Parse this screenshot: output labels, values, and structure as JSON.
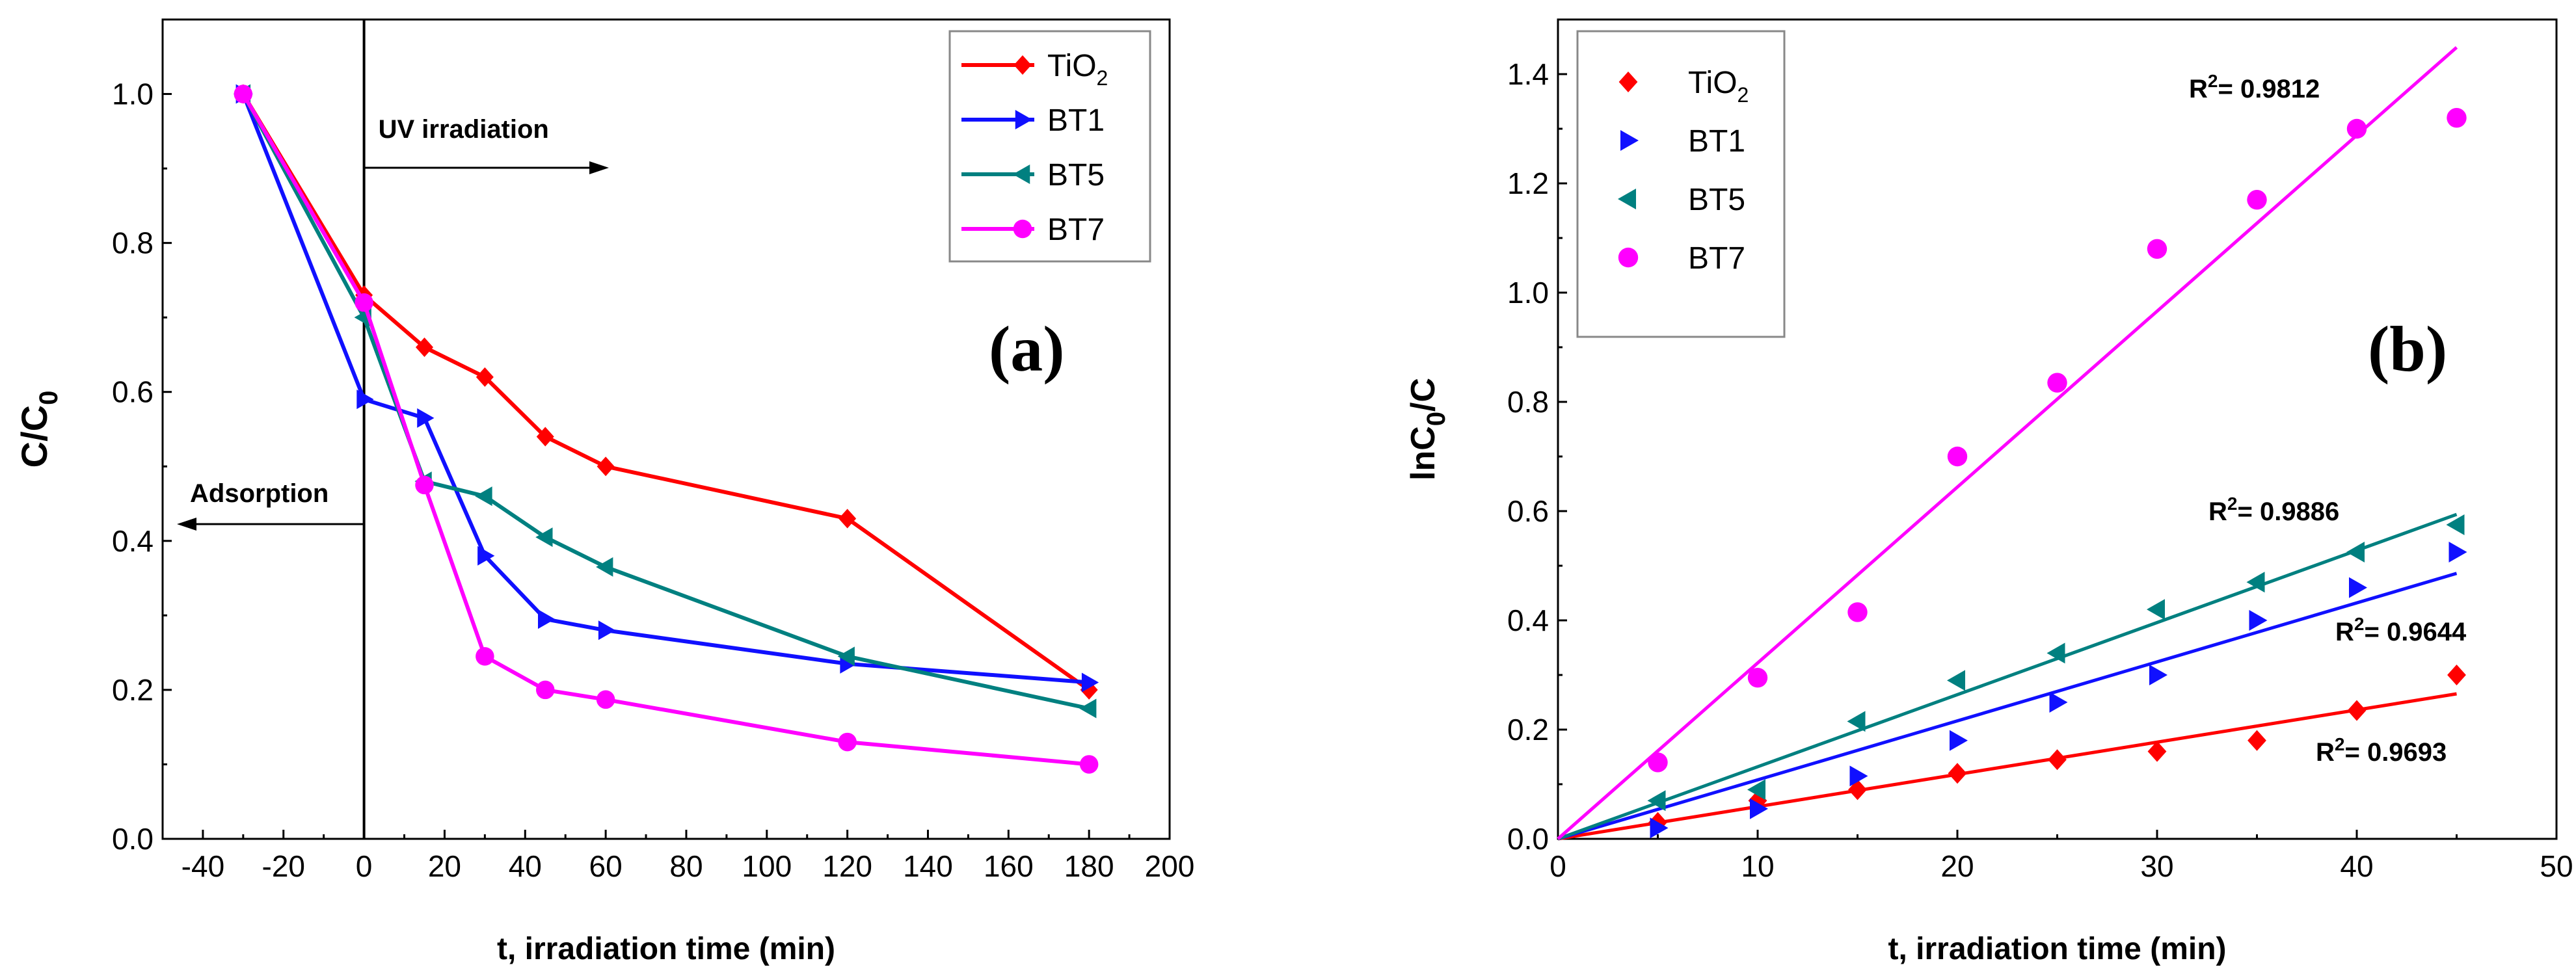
{
  "colors": {
    "TiO2": "#ff0000",
    "BT1": "#1010ff",
    "BT5": "#008080",
    "BT7": "#ff00ff",
    "axis": "#000000"
  },
  "chart_data": [
    {
      "type": "line",
      "panel_label": "(a)",
      "xlabel": "t, irradiation time (min)",
      "ylabel": "C/C0",
      "ylabel_main": "C/C",
      "ylabel_sub": "0",
      "xlim": [
        -50,
        200
      ],
      "ylim": [
        0,
        1.1
      ],
      "xticks": [
        -40,
        -20,
        0,
        20,
        40,
        60,
        80,
        100,
        120,
        140,
        160,
        180,
        200
      ],
      "yticks": [
        0.0,
        0.2,
        0.4,
        0.6,
        0.8,
        1.0
      ],
      "legend_position": "top-right",
      "annotations": {
        "uv": "UV irradiation",
        "adsorption": "Adsorption"
      },
      "series": [
        {
          "name": "TiO2",
          "label_main": "TiO",
          "label_sub": "2",
          "marker": "diamond",
          "x": [
            -30,
            0,
            15,
            30,
            45,
            60,
            120,
            180
          ],
          "y": [
            1.0,
            0.73,
            0.66,
            0.62,
            0.54,
            0.5,
            0.43,
            0.2
          ]
        },
        {
          "name": "BT1",
          "label_main": "BT1",
          "label_sub": "",
          "marker": "triangle-right",
          "x": [
            -30,
            0,
            15,
            30,
            45,
            60,
            120,
            180
          ],
          "y": [
            1.0,
            0.59,
            0.565,
            0.38,
            0.295,
            0.28,
            0.235,
            0.21
          ]
        },
        {
          "name": "BT5",
          "label_main": "BT5",
          "label_sub": "",
          "marker": "triangle-left",
          "x": [
            -30,
            0,
            15,
            30,
            45,
            60,
            120,
            180
          ],
          "y": [
            1.0,
            0.7,
            0.48,
            0.46,
            0.405,
            0.365,
            0.245,
            0.175
          ]
        },
        {
          "name": "BT7",
          "label_main": "BT7",
          "label_sub": "",
          "marker": "circle",
          "x": [
            -30,
            0,
            15,
            30,
            45,
            60,
            120,
            180
          ],
          "y": [
            1.0,
            0.72,
            0.475,
            0.245,
            0.2,
            0.187,
            0.13,
            0.1
          ]
        }
      ]
    },
    {
      "type": "scatter",
      "panel_label": "(b)",
      "xlabel": "t, irradiation time (min)",
      "ylabel": "lnC0/C",
      "ylabel_main1": "lnC",
      "ylabel_sub": "0",
      "ylabel_main2": "/C",
      "xlim": [
        0,
        50
      ],
      "ylim": [
        0,
        1.5
      ],
      "xticks": [
        0,
        10,
        20,
        30,
        40,
        50
      ],
      "yticks": [
        0.0,
        0.2,
        0.4,
        0.6,
        0.8,
        1.0,
        1.2,
        1.4
      ],
      "legend_position": "top-left",
      "series": [
        {
          "name": "TiO2",
          "label_main": "TiO",
          "label_sub": "2",
          "marker": "diamond",
          "x": [
            0,
            5,
            10,
            15,
            20,
            25,
            30,
            35,
            40,
            45
          ],
          "y": [
            0,
            0.03,
            0.07,
            0.09,
            0.12,
            0.145,
            0.16,
            0.18,
            0.235,
            0.3
          ],
          "fit_slope": 0.0059,
          "r2_label": "R",
          "r2_sup": "2",
          "r2_value": "= 0.9693"
        },
        {
          "name": "BT1",
          "label_main": "BT1",
          "label_sub": "",
          "marker": "triangle-right",
          "x": [
            0,
            5,
            10,
            15,
            20,
            25,
            30,
            35,
            40,
            45
          ],
          "y": [
            0,
            0.02,
            0.055,
            0.115,
            0.18,
            0.25,
            0.3,
            0.4,
            0.46,
            0.525
          ],
          "fit_slope": 0.0108,
          "r2_label": "R",
          "r2_sup": "2",
          "r2_value": "= 0.9644"
        },
        {
          "name": "BT5",
          "label_main": "BT5",
          "label_sub": "",
          "marker": "triangle-left",
          "x": [
            0,
            5,
            10,
            15,
            20,
            25,
            30,
            35,
            40,
            45
          ],
          "y": [
            0,
            0.07,
            0.09,
            0.215,
            0.29,
            0.34,
            0.42,
            0.47,
            0.525,
            0.575
          ],
          "fit_slope": 0.0132,
          "r2_label": "R",
          "r2_sup": "2",
          "r2_value": "= 0.9886"
        },
        {
          "name": "BT7",
          "label_main": "BT7",
          "label_sub": "",
          "marker": "circle",
          "x": [
            0,
            5,
            10,
            15,
            20,
            25,
            30,
            35,
            40,
            45
          ],
          "y": [
            0,
            0.14,
            0.295,
            0.415,
            0.7,
            0.835,
            1.08,
            1.17,
            1.3,
            1.32
          ],
          "fit_slope": 0.0322,
          "r2_label": "R",
          "r2_sup": "2",
          "r2_value": "= 0.9812"
        }
      ]
    }
  ]
}
